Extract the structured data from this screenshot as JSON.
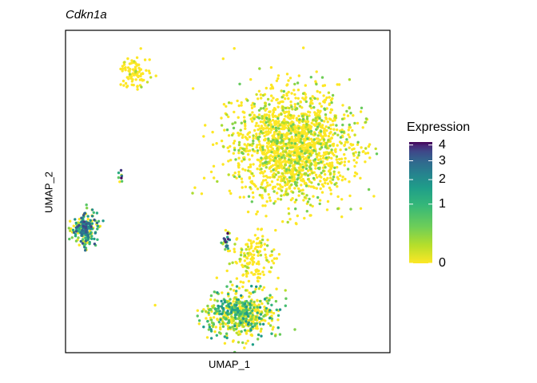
{
  "chart_data": {
    "type": "scatter",
    "title": "Cdkn1a",
    "xlabel": "UMAP_1",
    "ylabel": "UMAP_2",
    "axis_ticks_shown": false,
    "grid": false,
    "xlim": [
      -10,
      10
    ],
    "ylim": [
      -10,
      10
    ],
    "legend": {
      "title": "Expression",
      "placement": "right",
      "ticks": [
        "0",
        "1",
        "2",
        "3",
        "4"
      ],
      "min": 0,
      "max": 4.2,
      "colormap": "viridis",
      "colors": [
        "#fde725",
        "#5ec962",
        "#21918c",
        "#3b528b",
        "#440154"
      ]
    },
    "clusters": [
      {
        "center": [
          -5.8,
          7.4
        ],
        "spread": [
          0.8,
          0.9
        ],
        "count": 90,
        "mean_expression": 0.25
      },
      {
        "center": [
          -8.8,
          -2.3
        ],
        "spread": [
          0.7,
          0.9
        ],
        "count": 240,
        "mean_expression": 1.6
      },
      {
        "center": [
          -6.6,
          0.9
        ],
        "spread": [
          0.15,
          0.4
        ],
        "count": 8,
        "mean_expression": 2.6
      },
      {
        "center": [
          4.0,
          2.8
        ],
        "spread": [
          3.3,
          3.1
        ],
        "count": 1700,
        "mean_expression": 0.45
      },
      {
        "center": [
          1.6,
          -4.2
        ],
        "spread": [
          1.2,
          1.5
        ],
        "count": 150,
        "mean_expression": 0.3
      },
      {
        "center": [
          0.8,
          -7.6
        ],
        "spread": [
          2.0,
          1.3
        ],
        "count": 560,
        "mean_expression": 1.1
      },
      {
        "center": [
          -0.1,
          -3.1
        ],
        "spread": [
          0.3,
          0.6
        ],
        "count": 25,
        "mean_expression": 3.4
      }
    ]
  }
}
